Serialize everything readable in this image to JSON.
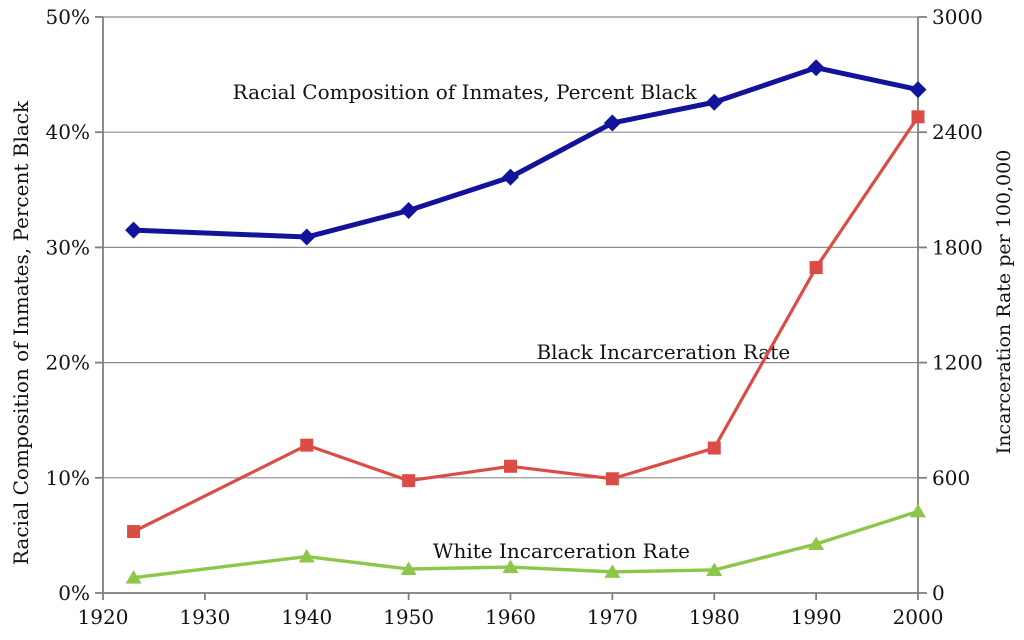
{
  "chart_data": {
    "type": "line",
    "title": "",
    "x": [
      1923,
      1940,
      1950,
      1960,
      1970,
      1980,
      1990,
      2000
    ],
    "x_axis": {
      "range": [
        1920,
        2000
      ],
      "tick_values": [
        1920,
        1930,
        1940,
        1950,
        1960,
        1970,
        1980,
        1990,
        2000
      ],
      "tick_labels": [
        "1920",
        "1930",
        "1940",
        "1950",
        "1960",
        "1970",
        "1980",
        "1990",
        "2000"
      ]
    },
    "y_left": {
      "title": "Racial Composition of Inmates, Percent Black",
      "range": [
        0,
        50
      ],
      "tick_values": [
        0,
        10,
        20,
        30,
        40,
        50
      ],
      "tick_labels": [
        "0%",
        "10%",
        "20%",
        "30%",
        "40%",
        "50%"
      ]
    },
    "y_right": {
      "title": "Incarceration Rate per 100,000",
      "range": [
        0,
        3000
      ],
      "tick_values": [
        0,
        600,
        1200,
        1800,
        2400,
        3000
      ],
      "tick_labels": [
        "0",
        "600",
        "1200",
        "1800",
        "2400",
        "3000"
      ]
    },
    "series": [
      {
        "name": "Racial Composition of Inmates, Percent Black",
        "axis": "left",
        "marker": "diamond",
        "color": "#12129B",
        "line_width": 5,
        "values": [
          31.5,
          30.9,
          33.2,
          36.1,
          40.8,
          42.6,
          45.6,
          43.7
        ]
      },
      {
        "name": "Black Incarceration Rate",
        "axis": "right",
        "marker": "square",
        "color": "#DC4C46",
        "line_width": 3.2,
        "values": [
          320,
          770,
          585,
          660,
          595,
          755,
          1695,
          2480
        ]
      },
      {
        "name": "White Incarceration Rate",
        "axis": "right",
        "marker": "triangle",
        "color": "#8EC64A",
        "line_width": 3.4,
        "values": [
          80,
          190,
          125,
          135,
          110,
          120,
          255,
          425
        ]
      }
    ],
    "annotations": [
      {
        "text": "Racial Composition of Inmates, Percent Black",
        "x": 1955.5,
        "y_left": 43.5
      },
      {
        "text": "Black Incarceration Rate",
        "x": 1975,
        "y_left": 20.9
      },
      {
        "text": "White Incarceration Rate",
        "x": 1965,
        "y_left": 3.65
      }
    ],
    "grid": true,
    "legend": "none",
    "style": {
      "grid_color": "#8C8C8C",
      "axis_color": "#7F7F7F",
      "text_color": "#121212",
      "background": "#FFFFFF"
    }
  }
}
